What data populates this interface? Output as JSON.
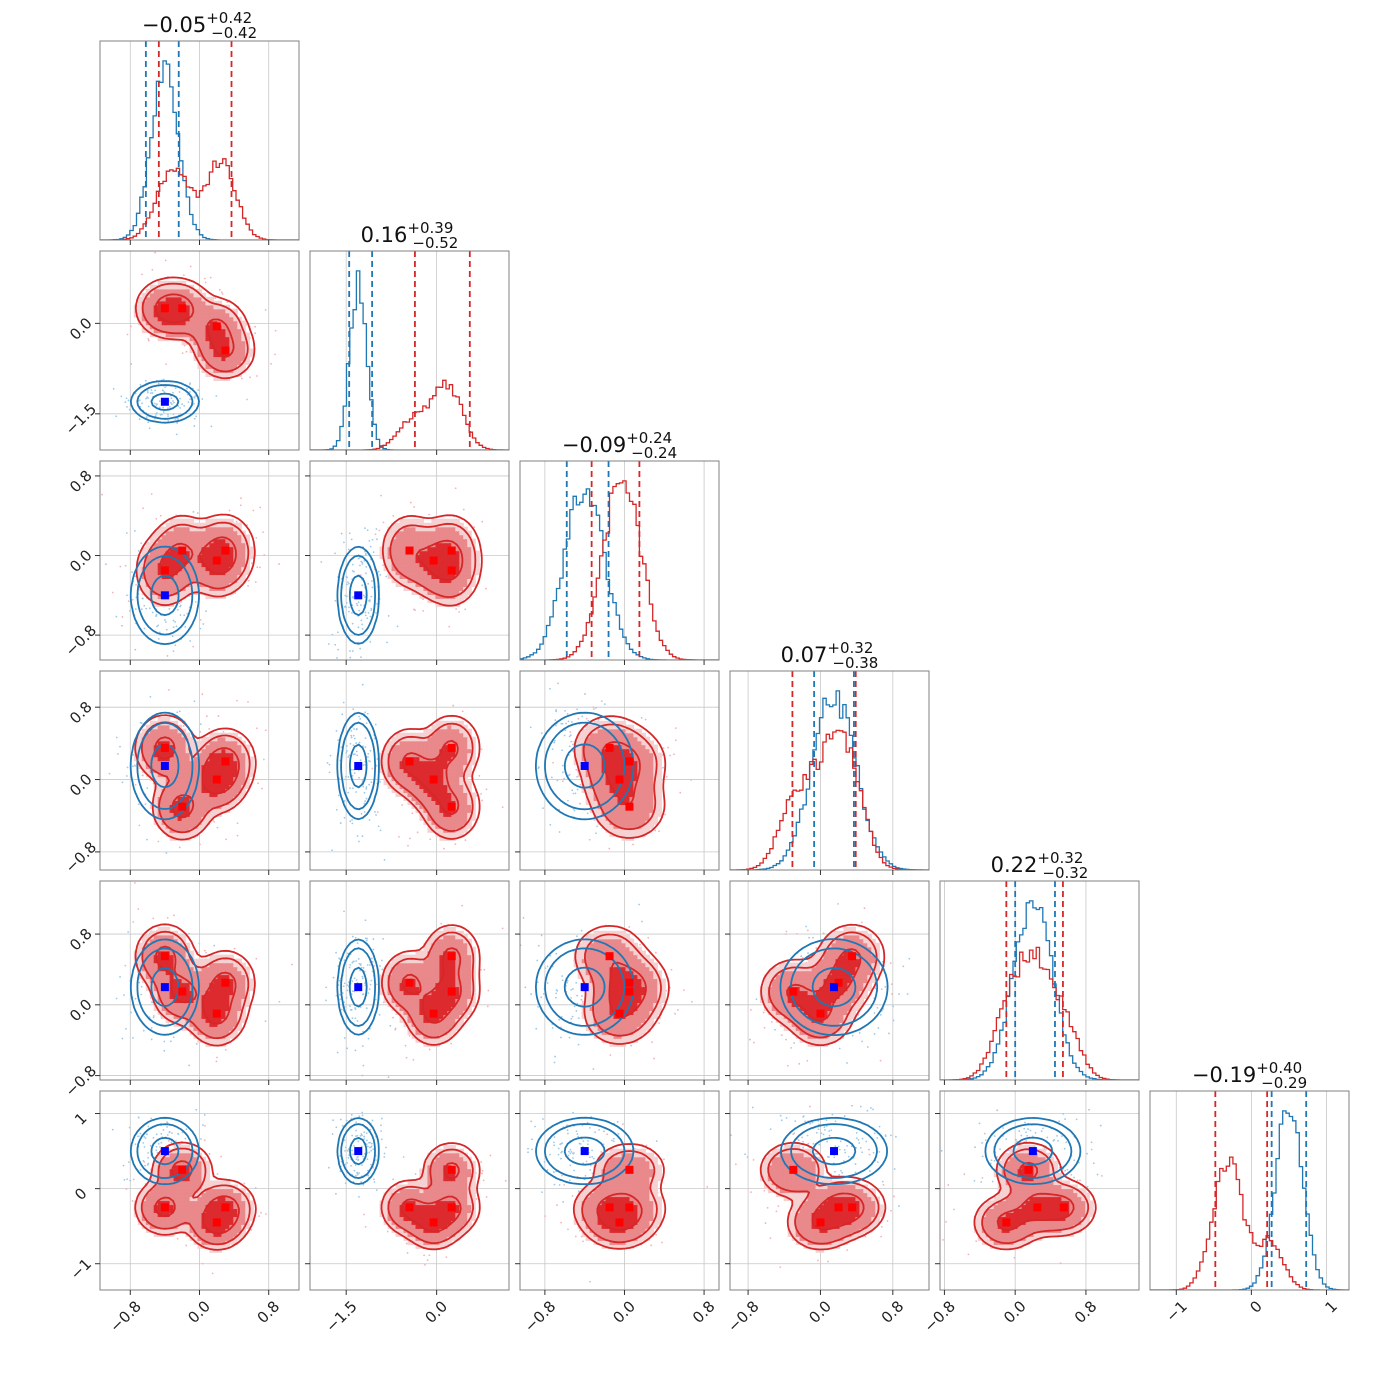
{
  "chart_data": {
    "type": "corner",
    "n_params": 6,
    "colors": {
      "series_a": "#1f77b4",
      "series_b": "#d62728",
      "marker_a": "#0000ff",
      "marker_b": "#ff0000"
    },
    "grid": true,
    "titles": [
      {
        "median": "−0.05",
        "plus": "+0.42",
        "minus": "−0.42"
      },
      {
        "median": "0.16",
        "plus": "+0.39",
        "minus": "−0.52"
      },
      {
        "median": "−0.09",
        "plus": "+0.24",
        "minus": "−0.24"
      },
      {
        "median": "0.07",
        "plus": "+0.32",
        "minus": "−0.38"
      },
      {
        "median": "0.22",
        "plus": "+0.32",
        "minus": "−0.32"
      },
      {
        "median": "−0.19",
        "plus": "+0.40",
        "minus": "−0.29"
      }
    ],
    "ranges": [
      [
        -1.15,
        1.15
      ],
      [
        -2.1,
        1.2
      ],
      [
        -1.05,
        0.95
      ],
      [
        -1.0,
        1.2
      ],
      [
        -0.85,
        1.4
      ],
      [
        -1.35,
        1.3
      ]
    ],
    "ticks": [
      {
        "values": [
          -0.8,
          0.0,
          0.8
        ],
        "labels": [
          "−0.8",
          "0.0",
          "0.8"
        ]
      },
      {
        "values": [
          -1.5,
          0.0
        ],
        "labels": [
          "−1.5",
          "0.0"
        ]
      },
      {
        "values": [
          -0.8,
          0.0,
          0.8
        ],
        "labels": [
          "−0.8",
          "0.0",
          "0.8"
        ]
      },
      {
        "values": [
          -0.8,
          0.0,
          0.8
        ],
        "labels": [
          "−0.8",
          "0.0",
          "0.8"
        ]
      },
      {
        "values": [
          -0.8,
          0.0,
          0.8
        ],
        "labels": [
          "−0.8",
          "0.0",
          "0.8"
        ]
      },
      {
        "values": [
          -1,
          0,
          1
        ],
        "labels": [
          "−1",
          "0",
          "1"
        ]
      }
    ],
    "series": [
      {
        "color": "#1f77b4",
        "components": [
          {
            "weight": 1.0,
            "mean": [
              -0.4,
              -1.3,
              -0.4,
              0.15,
              0.2,
              0.5
            ],
            "sd": [
              0.16,
              0.14,
              0.2,
              0.24,
              0.22,
              0.18
            ]
          }
        ],
        "quantiles": [
          [
            -0.62,
            -0.24
          ],
          [
            -1.45,
            -1.07
          ],
          [
            -0.58,
            -0.16
          ],
          [
            -0.07,
            0.37
          ],
          [
            0.0,
            0.45
          ],
          [
            0.27,
            0.73
          ]
        ]
      },
      {
        "color": "#d62728",
        "components": [
          {
            "weight": 0.25,
            "mean": [
              -0.4,
              0.25,
              -0.15,
              0.35,
              0.55,
              -0.25
            ],
            "sd": [
              0.16,
              0.22,
              0.17,
              0.17,
              0.17,
              0.17
            ]
          },
          {
            "weight": 0.25,
            "mean": [
              -0.2,
              0.25,
              0.05,
              -0.3,
              0.15,
              0.25
            ],
            "sd": [
              0.16,
              0.22,
              0.17,
              0.17,
              0.17,
              0.17
            ]
          },
          {
            "weight": 0.25,
            "mean": [
              0.2,
              -0.05,
              -0.05,
              0.0,
              -0.1,
              -0.45
            ],
            "sd": [
              0.16,
              0.22,
              0.17,
              0.17,
              0.17,
              0.17
            ]
          },
          {
            "weight": 0.25,
            "mean": [
              0.3,
              -0.45,
              0.05,
              0.2,
              0.25,
              -0.25
            ],
            "sd": [
              0.16,
              0.22,
              0.17,
              0.17,
              0.17,
              0.17
            ]
          }
        ],
        "quantiles": [
          [
            -0.47,
            0.37
          ],
          [
            -0.36,
            0.55
          ],
          [
            -0.33,
            0.15
          ],
          [
            -0.31,
            0.39
          ],
          [
            -0.1,
            0.54
          ],
          [
            -0.48,
            0.21
          ]
        ]
      }
    ],
    "truth_markers": {
      "series_a": [
        -0.4,
        -1.3,
        -0.4,
        0.15,
        0.2,
        0.5
      ],
      "series_b": [
        [
          -0.4,
          0.25,
          -0.15,
          0.35,
          0.55,
          -0.25
        ],
        [
          -0.2,
          0.25,
          0.05,
          -0.3,
          0.15,
          0.25
        ],
        [
          0.2,
          -0.05,
          -0.05,
          0.0,
          -0.1,
          -0.45
        ],
        [
          0.3,
          -0.45,
          0.05,
          0.2,
          0.25,
          -0.25
        ]
      ]
    }
  }
}
